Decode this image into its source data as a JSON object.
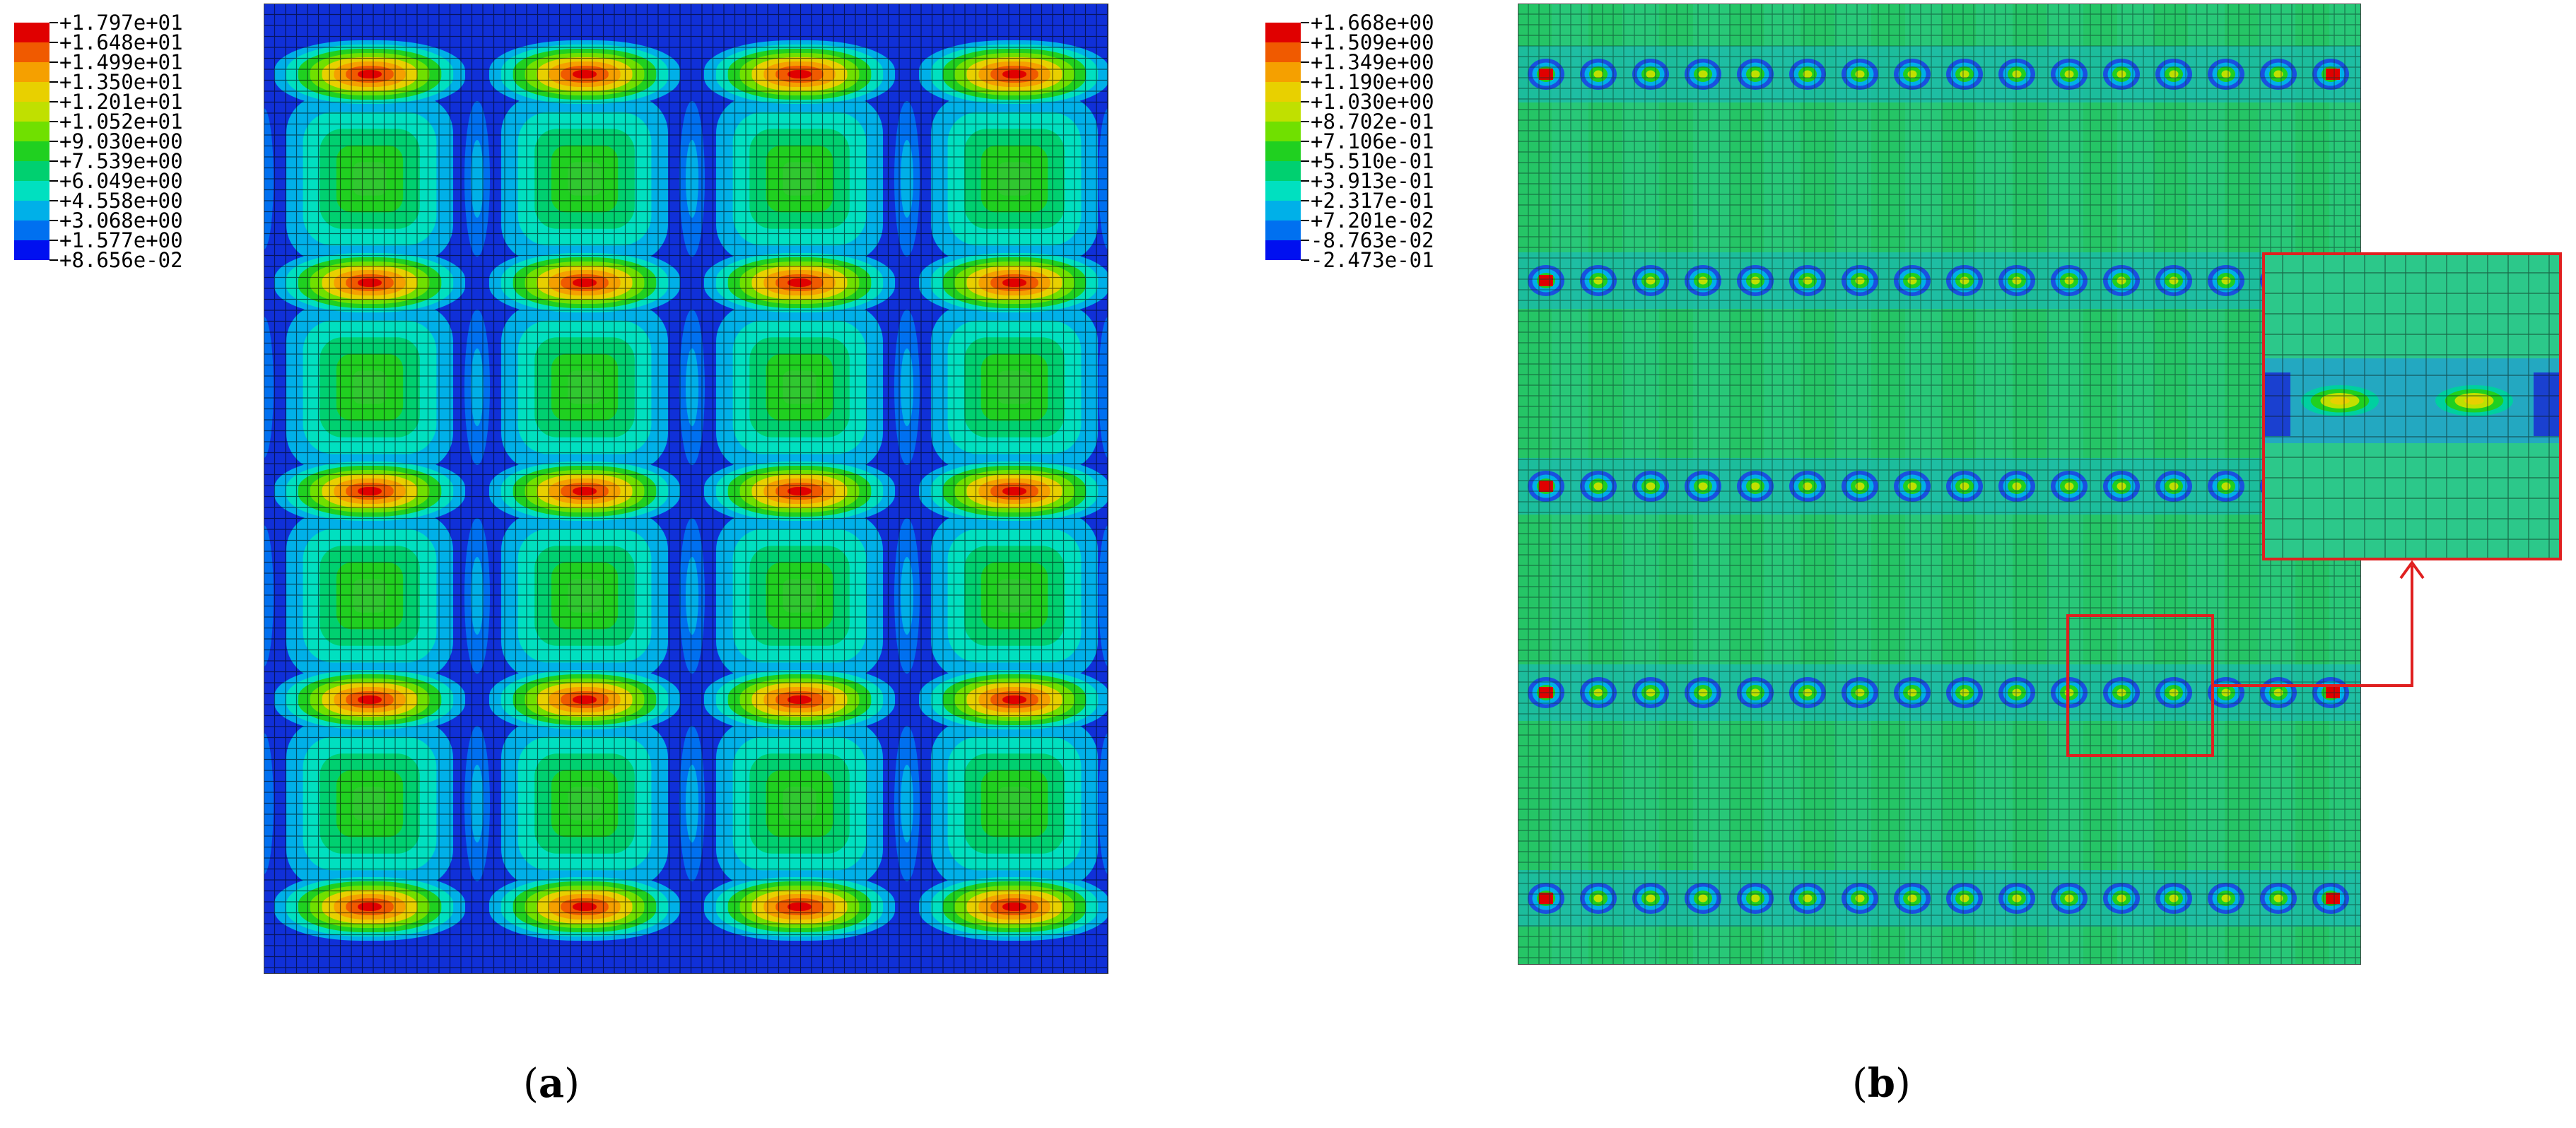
{
  "panels": [
    {
      "id": "a",
      "caption_letter": "a",
      "legend_values": [
        "+1.797e+01",
        "+1.648e+01",
        "+1.499e+01",
        "+1.350e+01",
        "+1.201e+01",
        "+1.052e+01",
        "+9.030e+00",
        "+7.539e+00",
        "+6.049e+00",
        "+4.558e+00",
        "+3.068e+00",
        "+1.577e+00",
        "+8.656e-02"
      ],
      "legend_colors": [
        "#e00000",
        "#f05a00",
        "#f5a000",
        "#e8d000",
        "#c0e000",
        "#70e000",
        "#20d020",
        "#00d070",
        "#00e0c0",
        "#00b0e8",
        "#0070f0",
        "#0010f0"
      ]
    },
    {
      "id": "b",
      "caption_letter": "b",
      "legend_values": [
        "+1.668e+00",
        "+1.509e+00",
        "+1.349e+00",
        "+1.190e+00",
        "+1.030e+00",
        "+8.702e-01",
        "+7.106e-01",
        "+5.510e-01",
        "+3.913e-01",
        "+2.317e-01",
        "+7.201e-02",
        "-8.763e-02",
        "-2.473e-01"
      ],
      "legend_colors": [
        "#e00000",
        "#f05a00",
        "#f5a000",
        "#e8d000",
        "#c0e000",
        "#70e000",
        "#20d020",
        "#00d070",
        "#00e0c0",
        "#00b0e8",
        "#0070f0",
        "#0010f0"
      ]
    }
  ]
}
